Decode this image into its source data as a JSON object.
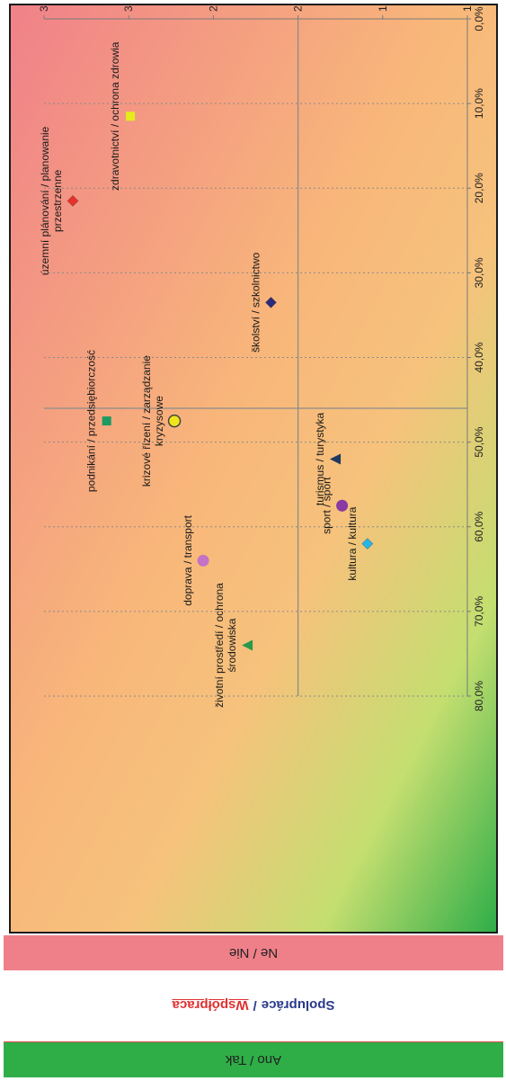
{
  "chart_data": {
    "type": "scatter",
    "x_axis": {
      "range": [
        0,
        0.8
      ],
      "ticks": [
        "0,0%",
        "10,0%",
        "20,0%",
        "30,0%",
        "40,0%",
        "50,0%",
        "60,0%",
        "70,0%",
        "80,0%"
      ],
      "tick_values": [
        0,
        0.1,
        0.2,
        0.3,
        0.4,
        0.5,
        0.6,
        0.7,
        0.8
      ],
      "grid": true
    },
    "y_axis": {
      "range": [
        1,
        3.5
      ],
      "ticks": [
        "1",
        "1,5",
        "2",
        "2,5",
        "3",
        "3,5"
      ],
      "tick_values": [
        1,
        1.5,
        2,
        2.5,
        3,
        3.5
      ]
    },
    "crosshair": {
      "x": 0.46,
      "y": 2.0
    },
    "points": [
      {
        "label": [
          "územní plánování / planowanie",
          "przestrzenne"
        ],
        "x": 0.215,
        "y": 3.33,
        "marker": "diamond",
        "color": "#e8312a"
      },
      {
        "label": [
          "zdravotnictví / ochrona zdrowia"
        ],
        "x": 0.115,
        "y": 2.99,
        "marker": "square",
        "color": "#e5ec1c"
      },
      {
        "label": [
          "školství / szkolnictwo"
        ],
        "x": 0.335,
        "y": 2.16,
        "marker": "diamond",
        "color": "#2c2a7c"
      },
      {
        "label": [
          "podnikání / przedsiębiorczość"
        ],
        "x": 0.475,
        "y": 3.13,
        "marker": "square",
        "color": "#1c9a63"
      },
      {
        "label": [
          "krizové řízení / zarządzanie",
          "kryzysowe"
        ],
        "x": 0.475,
        "y": 2.73,
        "marker": "circle",
        "color": "#f0e51a"
      },
      {
        "label": [
          "turismus / turystyka"
        ],
        "x": 0.52,
        "y": 1.78,
        "marker": "triangle",
        "color": "#1f3a5c"
      },
      {
        "label": [
          "sport / sport"
        ],
        "x": 0.575,
        "y": 1.74,
        "marker": "circle",
        "color": "#8a3aa2"
      },
      {
        "label": [
          "doprava / transport"
        ],
        "x": 0.64,
        "y": 2.56,
        "marker": "circle",
        "color": "#c472c4"
      },
      {
        "label": [
          "kultura / kultura"
        ],
        "x": 0.62,
        "y": 1.59,
        "marker": "diamond",
        "color": "#25b6e8"
      },
      {
        "label": [
          "životní prostředí / ochrona",
          "środowiska"
        ],
        "x": 0.74,
        "y": 2.3,
        "marker": "triangle",
        "color": "#2a9a4a"
      }
    ]
  },
  "legend": {
    "yes": "Ano / Tak",
    "no": "Ne / Nie",
    "title_cz": "Spolupráce",
    "separator": "/",
    "title_pl": "Współpraca"
  }
}
